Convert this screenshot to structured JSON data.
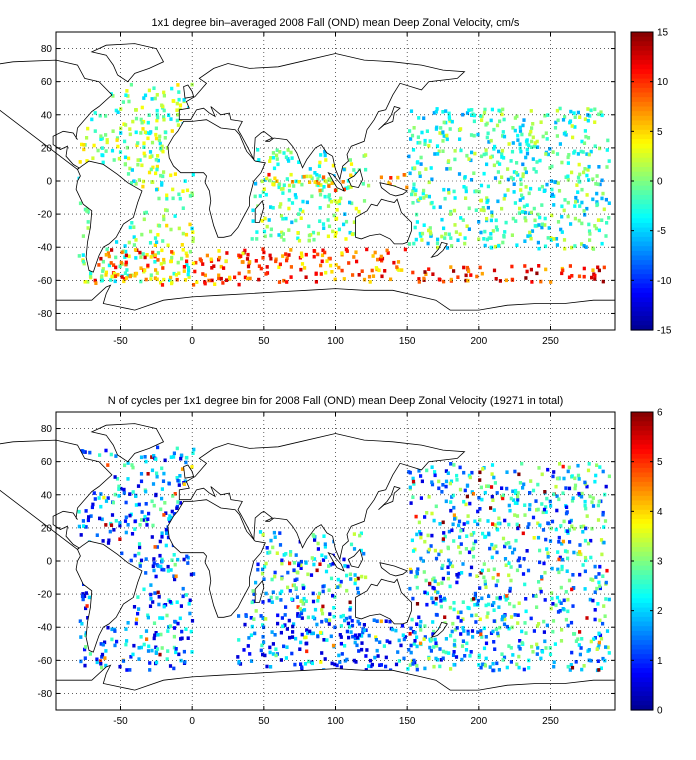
{
  "chart_data": [
    {
      "type": "heatmap",
      "title": "1x1 degree bin–averaged 2008 Fall (OND) mean Deep Zonal Velocity, cm/s",
      "xlabel": "",
      "ylabel": "",
      "xlim": [
        -95,
        295
      ],
      "ylim": [
        -90,
        90
      ],
      "xticks": [
        -50,
        0,
        50,
        100,
        150,
        200,
        250
      ],
      "yticks": [
        80,
        60,
        40,
        20,
        0,
        -20,
        -40,
        -60,
        -80
      ],
      "colorbar": {
        "min": -15,
        "max": 15,
        "ticks": [
          15,
          10,
          5,
          0,
          -5,
          -10,
          -15
        ]
      },
      "grid": true,
      "note_regions": [
        {
          "lon": [
            -80,
            0
          ],
          "lat": [
            -60,
            60
          ],
          "typical_value": 0
        },
        {
          "lon": [
            -70,
            40
          ],
          "lat": [
            -62,
            -40
          ],
          "typical_value": 8
        },
        {
          "lon": [
            30,
            150
          ],
          "lat": [
            -60,
            -40
          ],
          "typical_value": 8
        },
        {
          "lon": [
            150,
            290
          ],
          "lat": [
            -60,
            -50
          ],
          "typical_value": 10
        },
        {
          "lon": [
            150,
            290
          ],
          "lat": [
            -40,
            45
          ],
          "typical_value": -2
        },
        {
          "lon": [
            40,
            120
          ],
          "lat": [
            -35,
            20
          ],
          "typical_value": -1
        },
        {
          "lon": [
            50,
            150
          ],
          "lat": [
            -5,
            5
          ],
          "typical_value": 6
        }
      ]
    },
    {
      "type": "heatmap",
      "title": "N of cycles per 1x1 degree bin for 2008 Fall (OND) mean Deep Zonal Velocity (19271 in total)",
      "xlabel": "",
      "ylabel": "",
      "xlim": [
        -95,
        295
      ],
      "ylim": [
        -90,
        90
      ],
      "xticks": [
        -50,
        0,
        50,
        100,
        150,
        200,
        250
      ],
      "yticks": [
        80,
        60,
        40,
        20,
        0,
        -20,
        -40,
        -60,
        -80
      ],
      "colorbar": {
        "min": 0,
        "max": 6,
        "ticks": [
          6,
          5,
          4,
          3,
          2,
          1,
          0
        ]
      },
      "grid": true,
      "total_cycles": 19271,
      "note_regions": [
        {
          "lon": [
            -80,
            0
          ],
          "lat": [
            -65,
            70
          ],
          "typical_value": 1.5
        },
        {
          "lon": [
            30,
            150
          ],
          "lat": [
            -65,
            -30
          ],
          "typical_value": 1
        },
        {
          "lon": [
            150,
            290
          ],
          "lat": [
            -65,
            60
          ],
          "typical_value": 2
        },
        {
          "lon": [
            40,
            120
          ],
          "lat": [
            -35,
            20
          ],
          "typical_value": 2
        }
      ]
    }
  ],
  "colors": {
    "jet": [
      "#00008f",
      "#0000ff",
      "#0080ff",
      "#00ffff",
      "#80ff80",
      "#ffff00",
      "#ff8000",
      "#ff0000",
      "#800000"
    ]
  }
}
